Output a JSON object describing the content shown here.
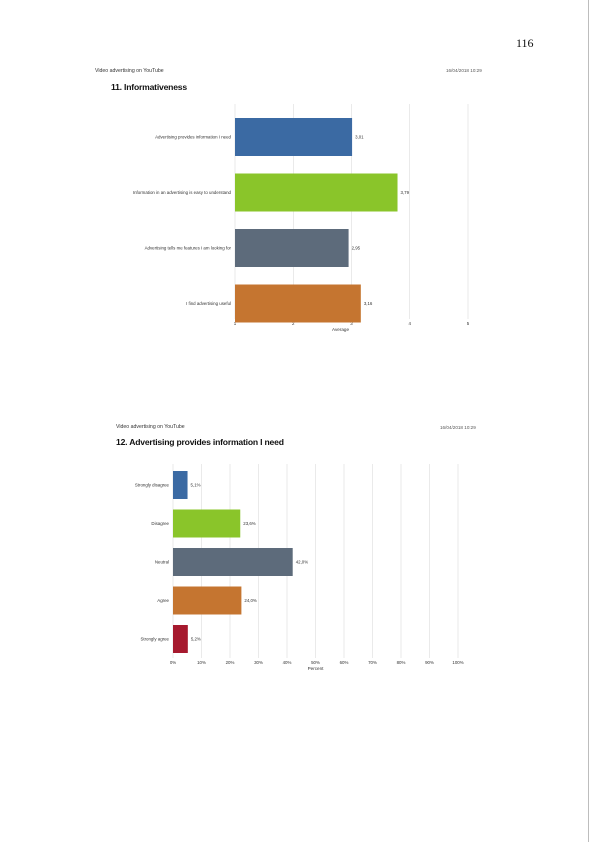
{
  "page_number": "116",
  "header1": {
    "name": "Video advertising on YouTube",
    "date": "16/04/2018 10:29"
  },
  "header2": {
    "name": "Video advertising on YouTube",
    "date": "16/04/2018 10:29"
  },
  "section1_title": "11. Informativeness",
  "section2_title": "12. Advertising provides information I need",
  "colors": {
    "blue": "#3b6aa3",
    "green": "#8ac52a",
    "slate": "#5d6b7b",
    "orange": "#c57530",
    "red": "#a6192e"
  },
  "chart_data": [
    {
      "type": "bar",
      "orientation": "horizontal",
      "categories": [
        "Advertising provides information I need",
        "Information in an advertising is easy to understand",
        "Advertising tells me features I am looking for",
        "I find advertising useful"
      ],
      "values": [
        3.01,
        3.79,
        2.95,
        3.16
      ],
      "value_labels": [
        "3,01",
        "3,79",
        "2,95",
        "3,16"
      ],
      "colors": [
        "#3b6aa3",
        "#8ac52a",
        "#5d6b7b",
        "#c57530"
      ],
      "xlabel": "Average",
      "xlim": [
        1,
        5
      ],
      "xticks": [
        "1",
        "2",
        "3",
        "4",
        "5"
      ],
      "grid": true
    },
    {
      "type": "bar",
      "orientation": "horizontal",
      "categories": [
        "Strongly disagree",
        "Disagree",
        "Neutral",
        "Agree",
        "Strongly agree"
      ],
      "values": [
        5.1,
        23.6,
        42.0,
        24.0,
        5.2
      ],
      "value_labels": [
        "5,1%",
        "23,6%",
        "42,0%",
        "24,0%",
        "5,2%"
      ],
      "colors": [
        "#3b6aa3",
        "#8ac52a",
        "#5d6b7b",
        "#c57530",
        "#a6192e"
      ],
      "xlabel": "Percent",
      "xlim": [
        0,
        100
      ],
      "xticks": [
        "0%",
        "10%",
        "20%",
        "30%",
        "40%",
        "50%",
        "60%",
        "70%",
        "80%",
        "90%",
        "100%"
      ],
      "grid": true
    }
  ]
}
